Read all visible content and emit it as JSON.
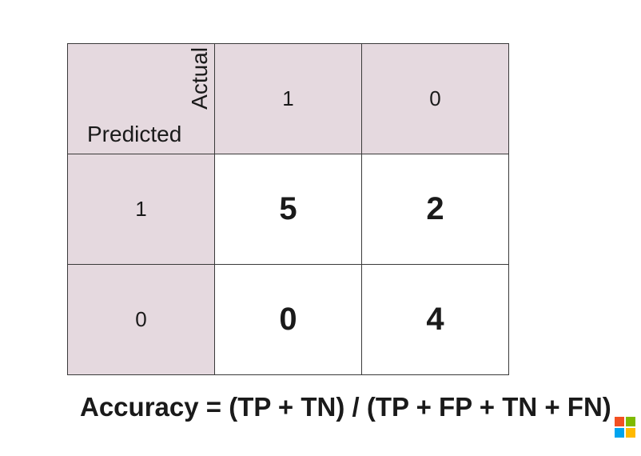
{
  "matrix": {
    "corner_row_label": "Predicted",
    "corner_col_label": "Actual",
    "actual_headers": [
      "1",
      "0"
    ],
    "predicted_headers": [
      "1",
      "0"
    ],
    "cells": [
      [
        "5",
        "2"
      ],
      [
        "0",
        "4"
      ]
    ],
    "header_color": "#e5d9df",
    "border_color": "#3a3a3a"
  },
  "formula": "Accuracy = (TP + TN) / (TP + FP + TN + FN)",
  "logo": {
    "icon": "windows-logo-icon",
    "colors": [
      "#f25022",
      "#7fba00",
      "#00a4ef",
      "#ffb900"
    ]
  }
}
